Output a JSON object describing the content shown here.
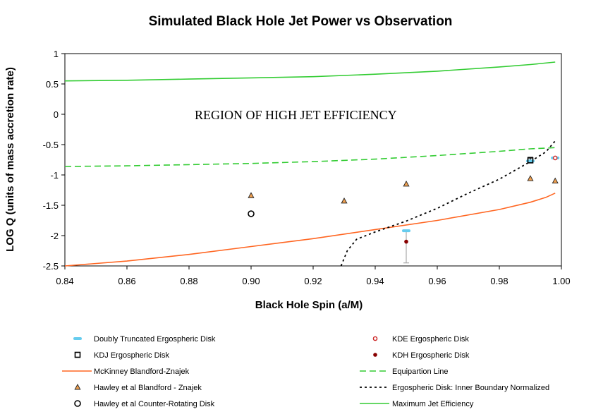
{
  "chart_data": {
    "type": "scatter",
    "title": "Simulated Black Hole Jet Power vs Observation",
    "xlabel": "Black Hole Spin (a/M)",
    "ylabel": "LOG Q (units of mass accretion rate)",
    "xlim": [
      0.84,
      1.0
    ],
    "ylim": [
      -2.5,
      1.0
    ],
    "x_ticks": [
      "0.84",
      "0.86",
      "0.88",
      "0.90",
      "0.92",
      "0.94",
      "0.96",
      "0.98",
      "1.00"
    ],
    "y_ticks": [
      "1",
      "0.5",
      "0",
      "-0.5",
      "-1",
      "-1.5",
      "-2",
      "-2.5"
    ],
    "x_tick_values": [
      0.84,
      0.86,
      0.88,
      0.9,
      0.92,
      0.94,
      0.96,
      0.98,
      1.0
    ],
    "y_tick_values": [
      1,
      0.5,
      0,
      -0.5,
      -1,
      -1.5,
      -2,
      -2.5
    ],
    "annotation": {
      "text": "REGION OF HIGH JET EFFICIENCY",
      "x": 0.877,
      "y": -0.05
    },
    "series": [
      {
        "name": "Doubly Truncated Ergospheric Disk",
        "kind": "marker",
        "marker": "dash",
        "color": "#66CCEE",
        "points": [
          [
            0.95,
            -1.92
          ],
          [
            0.99,
            -0.77
          ],
          [
            0.998,
            -0.72
          ]
        ],
        "error_bars": [
          {
            "x": 0.95,
            "low": -2.45,
            "high": -1.92
          }
        ]
      },
      {
        "name": "KDJ Ergospheric Disk",
        "kind": "marker",
        "marker": "square",
        "color": "#000000",
        "points": [
          [
            0.99,
            -0.76
          ]
        ],
        "error_bars": [
          {
            "x": 0.99,
            "low": -0.8,
            "high": -0.71
          }
        ]
      },
      {
        "name": "KDE Ergospheric Disk",
        "kind": "marker",
        "marker": "open-circle-small",
        "color": "#CC2222",
        "points": [
          [
            0.998,
            -0.72
          ]
        ]
      },
      {
        "name": "KDH Ergospheric Disk",
        "kind": "marker",
        "marker": "dot",
        "color": "#880000",
        "points": [
          [
            0.95,
            -2.1
          ]
        ]
      },
      {
        "name": "Hawley et al Blandford - Znajek",
        "kind": "marker",
        "marker": "triangle",
        "color": "#F0A050",
        "points": [
          [
            0.9,
            -1.34
          ],
          [
            0.93,
            -1.43
          ],
          [
            0.95,
            -1.15
          ],
          [
            0.99,
            -1.06
          ],
          [
            0.998,
            -1.1
          ]
        ]
      },
      {
        "name": "Hawley et al Counter-Rotating Disk",
        "kind": "marker",
        "marker": "open-circle",
        "color": "#000000",
        "points": [
          [
            0.9,
            -1.64
          ]
        ]
      },
      {
        "name": "McKinney Blandford-Znajek",
        "kind": "line",
        "dash": "",
        "color": "#FF6622",
        "points": [
          [
            0.84,
            -2.5
          ],
          [
            0.86,
            -2.42
          ],
          [
            0.88,
            -2.31
          ],
          [
            0.9,
            -2.18
          ],
          [
            0.92,
            -2.05
          ],
          [
            0.94,
            -1.9
          ],
          [
            0.96,
            -1.75
          ],
          [
            0.98,
            -1.57
          ],
          [
            0.99,
            -1.45
          ],
          [
            0.995,
            -1.37
          ],
          [
            0.998,
            -1.3
          ]
        ]
      },
      {
        "name": "Equipartion Line",
        "kind": "line",
        "dash": "9,5",
        "color": "#33CC33",
        "points": [
          [
            0.84,
            -0.86
          ],
          [
            0.86,
            -0.85
          ],
          [
            0.88,
            -0.83
          ],
          [
            0.9,
            -0.81
          ],
          [
            0.92,
            -0.78
          ],
          [
            0.94,
            -0.74
          ],
          [
            0.96,
            -0.68
          ],
          [
            0.98,
            -0.61
          ],
          [
            0.99,
            -0.57
          ],
          [
            0.998,
            -0.55
          ]
        ]
      },
      {
        "name": "Ergospheric Disk: Inner Boundary Normalized",
        "kind": "line",
        "dash": "3,4",
        "color": "#000000",
        "points": [
          [
            0.929,
            -2.5
          ],
          [
            0.931,
            -2.25
          ],
          [
            0.934,
            -2.06
          ],
          [
            0.94,
            -1.94
          ],
          [
            0.95,
            -1.76
          ],
          [
            0.96,
            -1.55
          ],
          [
            0.97,
            -1.3
          ],
          [
            0.98,
            -1.07
          ],
          [
            0.99,
            -0.78
          ],
          [
            0.995,
            -0.62
          ],
          [
            0.998,
            -0.44
          ]
        ]
      },
      {
        "name": "Maximum Jet Efficiency",
        "kind": "line",
        "dash": "",
        "color": "#33CC33",
        "points": [
          [
            0.84,
            0.55
          ],
          [
            0.86,
            0.56
          ],
          [
            0.88,
            0.58
          ],
          [
            0.9,
            0.6
          ],
          [
            0.92,
            0.62
          ],
          [
            0.94,
            0.66
          ],
          [
            0.96,
            0.71
          ],
          [
            0.98,
            0.78
          ],
          [
            0.99,
            0.82
          ],
          [
            0.998,
            0.86
          ]
        ]
      }
    ],
    "legend": {
      "left": [
        "Doubly Truncated Ergospheric Disk",
        "KDJ Ergospheric Disk",
        "McKinney Blandford-Znajek",
        "Hawley et al Blandford - Znajek",
        "Hawley et al Counter-Rotating Disk"
      ],
      "right": [
        "KDE Ergospheric Disk",
        "KDH Ergospheric Disk",
        "Equipartion Line",
        "Ergospheric Disk: Inner Boundary Normalized",
        "Maximum Jet  Efficiency"
      ]
    }
  }
}
